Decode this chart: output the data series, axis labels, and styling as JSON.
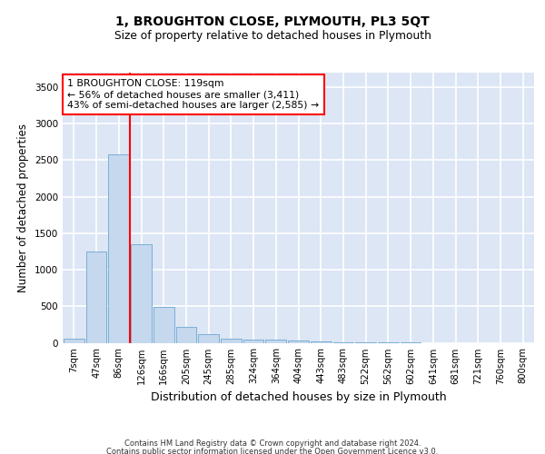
{
  "title": "1, BROUGHTON CLOSE, PLYMOUTH, PL3 5QT",
  "subtitle": "Size of property relative to detached houses in Plymouth",
  "xlabel": "Distribution of detached houses by size in Plymouth",
  "ylabel": "Number of detached properties",
  "bar_color": "#c5d8ee",
  "bar_edge_color": "#7aafd4",
  "background_color": "#dce6f5",
  "grid_color": "#ffffff",
  "categories": [
    "7sqm",
    "47sqm",
    "86sqm",
    "126sqm",
    "166sqm",
    "205sqm",
    "245sqm",
    "285sqm",
    "324sqm",
    "364sqm",
    "404sqm",
    "443sqm",
    "483sqm",
    "522sqm",
    "562sqm",
    "602sqm",
    "641sqm",
    "681sqm",
    "721sqm",
    "760sqm",
    "800sqm"
  ],
  "values": [
    50,
    1250,
    2580,
    1350,
    490,
    215,
    115,
    55,
    40,
    40,
    30,
    20,
    5,
    2,
    1,
    1,
    0,
    0,
    0,
    0,
    0
  ],
  "ylim": [
    0,
    3700
  ],
  "yticks": [
    0,
    500,
    1000,
    1500,
    2000,
    2500,
    3000,
    3500
  ],
  "vline_index": 2.5,
  "annotation_text": "1 BROUGHTON CLOSE: 119sqm\n← 56% of detached houses are smaller (3,411)\n43% of semi-detached houses are larger (2,585) →",
  "footnote_line1": "Contains HM Land Registry data © Crown copyright and database right 2024.",
  "footnote_line2": "Contains public sector information licensed under the Open Government Licence v3.0."
}
